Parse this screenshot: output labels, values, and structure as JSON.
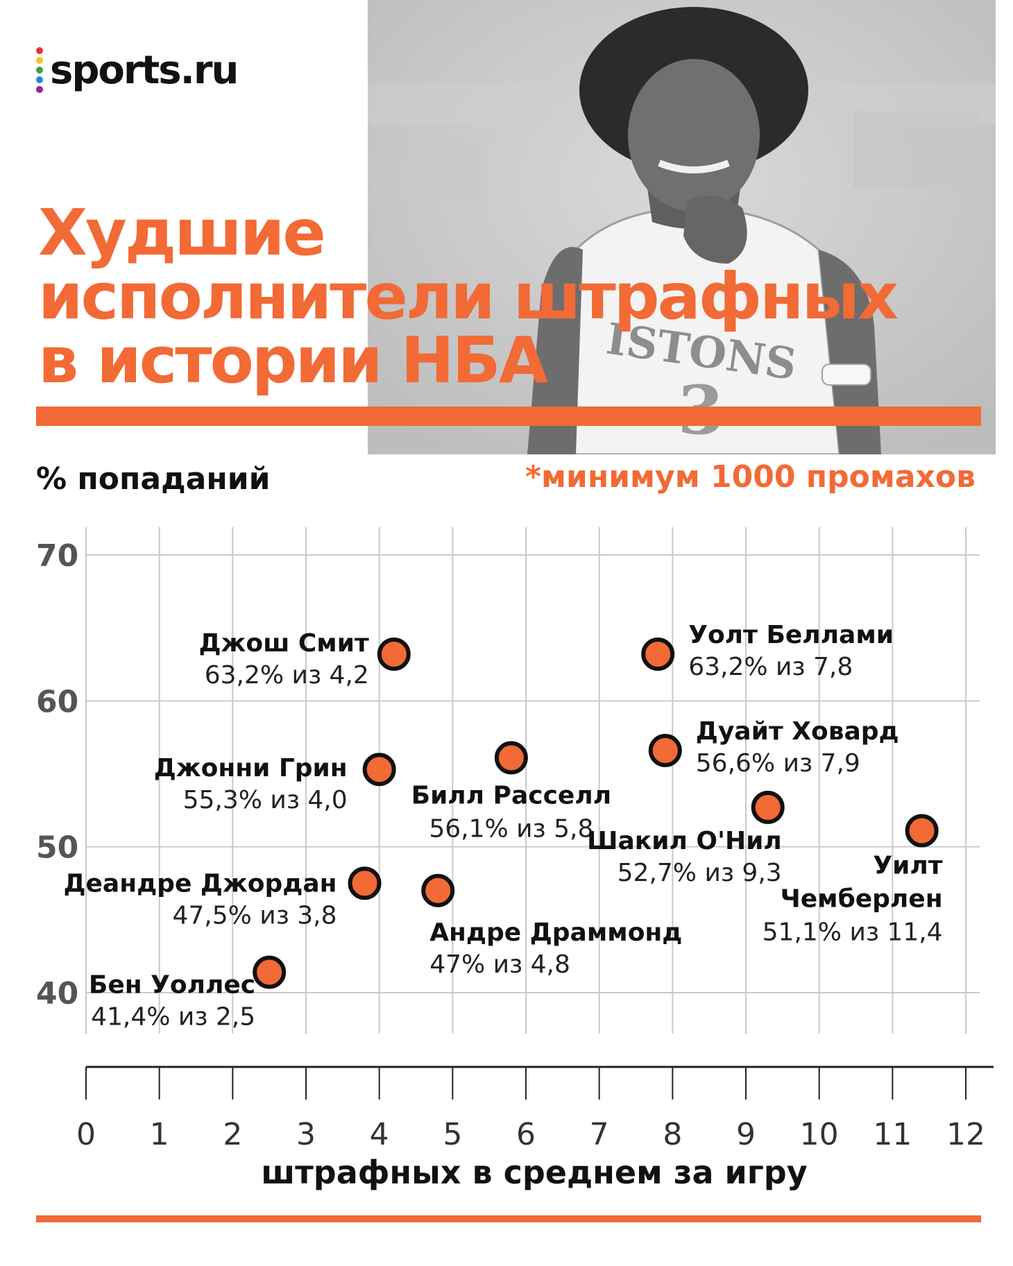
{
  "brand": {
    "logo_text": "sports.ru",
    "dot_colors": [
      "#e53935",
      "#fbc02d",
      "#43a047",
      "#1e88e5",
      "#8e24aa"
    ]
  },
  "header": {
    "title_lines": [
      "Худшие",
      "исполнители штрафных",
      "в истории НБА"
    ],
    "photo_jersey_text": "ISTONS",
    "photo_jersey_number": "3"
  },
  "chart_data": {
    "type": "scatter",
    "ylabel": "% попаданий",
    "xlabel": "штрафных в среднем за игру",
    "note": "*минимум 1000 промахов",
    "xlim": [
      0,
      12
    ],
    "ylim": [
      40,
      70
    ],
    "x_ticks": [
      "0",
      "1",
      "2",
      "3",
      "4",
      "5",
      "6",
      "7",
      "8",
      "9",
      "10",
      "11",
      "12"
    ],
    "y_ticks": [
      "40",
      "50",
      "60",
      "70"
    ],
    "grid": true,
    "point_color": "#f26a35",
    "points": [
      {
        "name": "Джош Смит",
        "label": "63,2% из 4,2",
        "x": 4.2,
        "y": 63.2
      },
      {
        "name": "Уолт Беллами",
        "label": "63,2% из 7,8",
        "x": 7.8,
        "y": 63.2
      },
      {
        "name": "Дуайт Ховард",
        "label": "56,6% из 7,9",
        "x": 7.9,
        "y": 56.6
      },
      {
        "name": "Билл Расселл",
        "label": "56,1% из 5,8",
        "x": 5.8,
        "y": 56.1
      },
      {
        "name": "Джонни Грин",
        "label": "55,3% из 4,0",
        "x": 4.0,
        "y": 55.3
      },
      {
        "name": "Шакил О'Нил",
        "label": "52,7% из 9,3",
        "x": 9.3,
        "y": 52.7
      },
      {
        "name": "Уилт Чемберлен",
        "label": "51,1% из 11,4",
        "x": 11.4,
        "y": 51.1
      },
      {
        "name": "Деандре Джордан",
        "label": "47,5% из 3,8",
        "x": 3.8,
        "y": 47.5
      },
      {
        "name": "Андре Драммонд",
        "label": "47%  из 4,8",
        "x": 4.8,
        "y": 47.0
      },
      {
        "name": "Бен Уоллес",
        "label": "41,4% из 2,5",
        "x": 2.5,
        "y": 41.4
      }
    ]
  }
}
